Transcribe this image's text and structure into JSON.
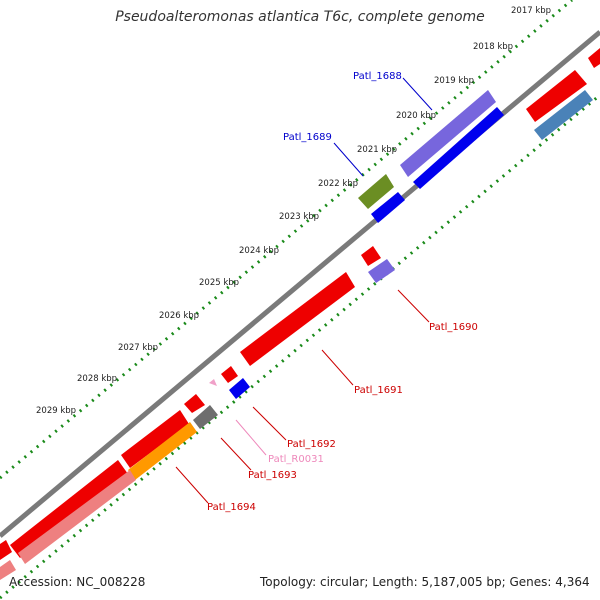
{
  "title": "Pseudoalteromonas atlantica T6c, complete genome",
  "accession": "Accession: NC_008228",
  "summary": "Topology: circular; Length: 5,187,005 bp; Genes: 4,364",
  "ruler": [
    "2017 kbp",
    "2018 kbp",
    "2019 kbp",
    "2020 kbp",
    "2021 kbp",
    "2022 kbp",
    "2023 kbp",
    "2024 kbp",
    "2025 kbp",
    "2026 kbp",
    "2027 kbp",
    "2028 kbp",
    "2029 kbp"
  ],
  "genes": [
    {
      "label": "Patl_1688",
      "color": "#0000cc"
    },
    {
      "label": "Patl_1689",
      "color": "#0000cc"
    },
    {
      "label": "Patl_1690",
      "color": "#cc0000"
    },
    {
      "label": "Patl_1691",
      "color": "#cc0000"
    },
    {
      "label": "Patl_1692",
      "color": "#cc0000"
    },
    {
      "label": "Patl_R0031",
      "color": "#ee88bb"
    },
    {
      "label": "Patl_1693",
      "color": "#cc0000"
    },
    {
      "label": "Patl_1694",
      "color": "#cc0000"
    }
  ],
  "colors": {
    "backbone": "#7a7a7a",
    "dotted_ruler": "#1a8a1a",
    "cds_forward": "#ee0000",
    "cds_reverse": "#0000ee",
    "cds_light_red": "#ee8080",
    "cds_purple": "#7766dd",
    "cds_steel": "#4a82b8",
    "cds_olive": "#6b8e23",
    "cds_orange": "#ff9900",
    "cds_gray": "#6e6e6e",
    "rna_pink": "#f0a0c8"
  }
}
